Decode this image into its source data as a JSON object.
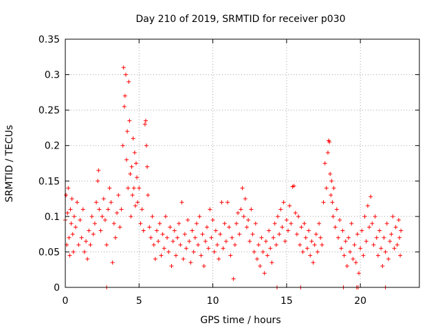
{
  "chart_data": {
    "type": "scatter",
    "title": "Day 210 of 2019, SRMTID for receiver p030",
    "xlabel": "GPS time / hours",
    "ylabel": "SRMTID / TECUs",
    "xlim": [
      0,
      24
    ],
    "ylim": [
      0,
      0.35
    ],
    "x_ticks": [
      0,
      5,
      10,
      15,
      20
    ],
    "x_tick_labels": [
      "0",
      "5",
      "10",
      "15",
      "20"
    ],
    "y_ticks": [
      0,
      0.05,
      0.1,
      0.15,
      0.2,
      0.25,
      0.3,
      0.35
    ],
    "y_tick_labels": [
      "0",
      "0.05",
      "0.1",
      "0.15",
      "0.2",
      "0.25",
      "0.3",
      "0.35"
    ],
    "grid": true,
    "marker": "+",
    "color": "#ff0000",
    "series": [
      {
        "name": "SRMTID",
        "points": [
          [
            0.0,
            0.095
          ],
          [
            0.05,
            0.13
          ],
          [
            0.1,
            0.06
          ],
          [
            0.15,
            0.105
          ],
          [
            0.2,
            0.14
          ],
          [
            0.25,
            0.07
          ],
          [
            0.3,
            0.045
          ],
          [
            0.35,
            0.11
          ],
          [
            0.4,
            0.09
          ],
          [
            0.45,
            0.125
          ],
          [
            0.5,
            0.075
          ],
          [
            0.55,
            0.05
          ],
          [
            0.6,
            0.1
          ],
          [
            0.7,
            0.085
          ],
          [
            0.8,
            0.12
          ],
          [
            0.9,
            0.06
          ],
          [
            1.0,
            0.095
          ],
          [
            1.1,
            0.07
          ],
          [
            1.2,
            0.11
          ],
          [
            1.3,
            0.05
          ],
          [
            1.4,
            0.065
          ],
          [
            1.5,
            0.04
          ],
          [
            1.6,
            0.08
          ],
          [
            1.7,
            0.06
          ],
          [
            1.8,
            0.1
          ],
          [
            1.9,
            0.075
          ],
          [
            2.0,
            0.09
          ],
          [
            2.1,
            0.12
          ],
          [
            2.2,
            0.15
          ],
          [
            2.25,
            0.165
          ],
          [
            2.3,
            0.11
          ],
          [
            2.4,
            0.08
          ],
          [
            2.5,
            0.1
          ],
          [
            2.6,
            0.125
          ],
          [
            2.7,
            0.095
          ],
          [
            2.8,
            0.06
          ],
          [
            2.9,
            0.11
          ],
          [
            3.0,
            0.14
          ],
          [
            3.1,
            0.12
          ],
          [
            3.2,
            0.035
          ],
          [
            3.3,
            0.09
          ],
          [
            3.4,
            0.07
          ],
          [
            3.5,
            0.105
          ],
          [
            3.6,
            0.13
          ],
          [
            3.7,
            0.085
          ],
          [
            3.8,
            0.11
          ],
          [
            3.9,
            0.2
          ],
          [
            3.95,
            0.31
          ],
          [
            4.0,
            0.255
          ],
          [
            4.05,
            0.27
          ],
          [
            4.1,
            0.3
          ],
          [
            4.15,
            0.18
          ],
          [
            4.2,
            0.22
          ],
          [
            4.25,
            0.14
          ],
          [
            4.3,
            0.29
          ],
          [
            4.35,
            0.235
          ],
          [
            4.4,
            0.16
          ],
          [
            4.45,
            0.1
          ],
          [
            4.5,
            0.17
          ],
          [
            4.55,
            0.13
          ],
          [
            4.6,
            0.21
          ],
          [
            4.65,
            0.14
          ],
          [
            4.7,
            0.19
          ],
          [
            4.75,
            0.115
          ],
          [
            4.8,
            0.175
          ],
          [
            4.85,
            0.155
          ],
          [
            4.9,
            0.12
          ],
          [
            5.0,
            0.14
          ],
          [
            5.1,
            0.09
          ],
          [
            5.2,
            0.11
          ],
          [
            5.3,
            0.08
          ],
          [
            5.4,
            0.23
          ],
          [
            5.45,
            0.235
          ],
          [
            5.5,
            0.2
          ],
          [
            5.55,
            0.17
          ],
          [
            5.6,
            0.13
          ],
          [
            5.7,
            0.085
          ],
          [
            5.8,
            0.07
          ],
          [
            5.9,
            0.1
          ],
          [
            6.0,
            0.06
          ],
          [
            6.1,
            0.04
          ],
          [
            6.2,
            0.08
          ],
          [
            6.3,
            0.065
          ],
          [
            6.4,
            0.09
          ],
          [
            6.5,
            0.045
          ],
          [
            6.6,
            0.075
          ],
          [
            6.7,
            0.055
          ],
          [
            6.8,
            0.1
          ],
          [
            6.9,
            0.07
          ],
          [
            7.0,
            0.05
          ],
          [
            7.1,
            0.085
          ],
          [
            7.2,
            0.03
          ],
          [
            7.3,
            0.065
          ],
          [
            7.4,
            0.08
          ],
          [
            7.5,
            0.045
          ],
          [
            7.6,
            0.07
          ],
          [
            7.7,
            0.09
          ],
          [
            7.8,
            0.06
          ],
          [
            7.9,
            0.12
          ],
          [
            8.0,
            0.04
          ],
          [
            8.1,
            0.075
          ],
          [
            8.2,
            0.055
          ],
          [
            8.3,
            0.095
          ],
          [
            8.4,
            0.065
          ],
          [
            8.5,
            0.035
          ],
          [
            8.6,
            0.08
          ],
          [
            8.7,
            0.05
          ],
          [
            8.8,
            0.07
          ],
          [
            8.9,
            0.09
          ],
          [
            9.0,
            0.06
          ],
          [
            9.1,
            0.1
          ],
          [
            9.2,
            0.045
          ],
          [
            9.3,
            0.075
          ],
          [
            9.4,
            0.03
          ],
          [
            9.5,
            0.065
          ],
          [
            9.6,
            0.085
          ],
          [
            9.7,
            0.055
          ],
          [
            9.8,
            0.11
          ],
          [
            9.9,
            0.07
          ],
          [
            10.0,
            0.095
          ],
          [
            10.1,
            0.05
          ],
          [
            10.2,
            0.08
          ],
          [
            10.3,
            0.06
          ],
          [
            10.4,
            0.04
          ],
          [
            10.5,
            0.075
          ],
          [
            10.6,
            0.12
          ],
          [
            10.7,
            0.055
          ],
          [
            10.8,
            0.09
          ],
          [
            10.9,
            0.065
          ],
          [
            11.0,
            0.12
          ],
          [
            11.1,
            0.085
          ],
          [
            11.2,
            0.045
          ],
          [
            11.3,
            0.07
          ],
          [
            11.4,
            0.012
          ],
          [
            11.5,
            0.06
          ],
          [
            11.6,
            0.09
          ],
          [
            11.7,
            0.105
          ],
          [
            11.8,
            0.075
          ],
          [
            11.9,
            0.11
          ],
          [
            12.0,
            0.14
          ],
          [
            12.1,
            0.1
          ],
          [
            12.2,
            0.125
          ],
          [
            12.3,
            0.085
          ],
          [
            12.4,
            0.095
          ],
          [
            12.5,
            0.065
          ],
          [
            12.6,
            0.11
          ],
          [
            12.7,
            0.075
          ],
          [
            12.8,
            0.05
          ],
          [
            12.9,
            0.09
          ],
          [
            13.0,
            0.04
          ],
          [
            13.1,
            0.06
          ],
          [
            13.2,
            0.03
          ],
          [
            13.3,
            0.07
          ],
          [
            13.4,
            0.05
          ],
          [
            13.5,
            0.02
          ],
          [
            13.6,
            0.065
          ],
          [
            13.7,
            0.045
          ],
          [
            13.8,
            0.08
          ],
          [
            13.9,
            0.055
          ],
          [
            14.0,
            0.035
          ],
          [
            14.1,
            0.07
          ],
          [
            14.2,
            0.09
          ],
          [
            14.3,
            0.06
          ],
          [
            14.4,
            0.1
          ],
          [
            14.5,
            0.075
          ],
          [
            14.6,
            0.11
          ],
          [
            14.7,
            0.085
          ],
          [
            14.8,
            0.12
          ],
          [
            14.9,
            0.065
          ],
          [
            15.0,
            0.095
          ],
          [
            15.1,
            0.08
          ],
          [
            15.2,
            0.115
          ],
          [
            15.3,
            0.09
          ],
          [
            15.4,
            0.142
          ],
          [
            15.5,
            0.143
          ],
          [
            15.6,
            0.105
          ],
          [
            15.7,
            0.075
          ],
          [
            15.8,
            0.1
          ],
          [
            15.9,
            0.06
          ],
          [
            16.0,
            0.085
          ],
          [
            16.1,
            0.05
          ],
          [
            16.2,
            0.09
          ],
          [
            16.3,
            0.07
          ],
          [
            16.4,
            0.055
          ],
          [
            16.5,
            0.08
          ],
          [
            16.6,
            0.045
          ],
          [
            16.7,
            0.065
          ],
          [
            16.8,
            0.035
          ],
          [
            16.9,
            0.06
          ],
          [
            17.0,
            0.075
          ],
          [
            17.1,
            0.05
          ],
          [
            17.2,
            0.09
          ],
          [
            17.3,
            0.07
          ],
          [
            17.4,
            0.06
          ],
          [
            17.5,
            0.12
          ],
          [
            17.6,
            0.175
          ],
          [
            17.7,
            0.14
          ],
          [
            17.8,
            0.19
          ],
          [
            17.85,
            0.207
          ],
          [
            17.9,
            0.205
          ],
          [
            17.95,
            0.16
          ],
          [
            18.0,
            0.13
          ],
          [
            18.05,
            0.15
          ],
          [
            18.1,
            0.12
          ],
          [
            18.15,
            0.1
          ],
          [
            18.2,
            0.14
          ],
          [
            18.3,
            0.085
          ],
          [
            18.4,
            0.11
          ],
          [
            18.5,
            0.07
          ],
          [
            18.6,
            0.095
          ],
          [
            18.7,
            0.055
          ],
          [
            18.8,
            0.08
          ],
          [
            18.9,
            0.045
          ],
          [
            19.0,
            0.065
          ],
          [
            19.1,
            0.03
          ],
          [
            19.2,
            0.07
          ],
          [
            19.3,
            0.05
          ],
          [
            19.4,
            0.09
          ],
          [
            19.5,
            0.04
          ],
          [
            19.6,
            0.06
          ],
          [
            19.7,
            0.035
          ],
          [
            19.8,
            0.075
          ],
          [
            19.9,
            0.02
          ],
          [
            20.0,
            0.055
          ],
          [
            20.1,
            0.08
          ],
          [
            20.2,
            0.045
          ],
          [
            20.3,
            0.1
          ],
          [
            20.4,
            0.065
          ],
          [
            20.5,
            0.115
          ],
          [
            20.6,
            0.085
          ],
          [
            20.7,
            0.128
          ],
          [
            20.8,
            0.09
          ],
          [
            20.9,
            0.06
          ],
          [
            21.0,
            0.1
          ],
          [
            21.1,
            0.07
          ],
          [
            21.2,
            0.045
          ],
          [
            21.3,
            0.08
          ],
          [
            21.4,
            0.055
          ],
          [
            21.5,
            0.03
          ],
          [
            21.6,
            0.07
          ],
          [
            21.7,
            0.05
          ],
          [
            21.8,
            0.09
          ],
          [
            21.9,
            0.04
          ],
          [
            22.0,
            0.065
          ],
          [
            22.1,
            0.075
          ],
          [
            22.2,
            0.1
          ],
          [
            22.3,
            0.055
          ],
          [
            22.4,
            0.085
          ],
          [
            22.5,
            0.06
          ],
          [
            22.6,
            0.095
          ],
          [
            22.65,
            0.07
          ],
          [
            22.7,
            0.045
          ],
          [
            22.75,
            0.08
          ],
          [
            2.8,
            0.0
          ],
          [
            14.35,
            0.0
          ],
          [
            15.95,
            0.0
          ],
          [
            18.85,
            0.0
          ],
          [
            19.75,
            0.0
          ],
          [
            19.85,
            0.0
          ],
          [
            21.7,
            0.0
          ]
        ]
      }
    ]
  }
}
